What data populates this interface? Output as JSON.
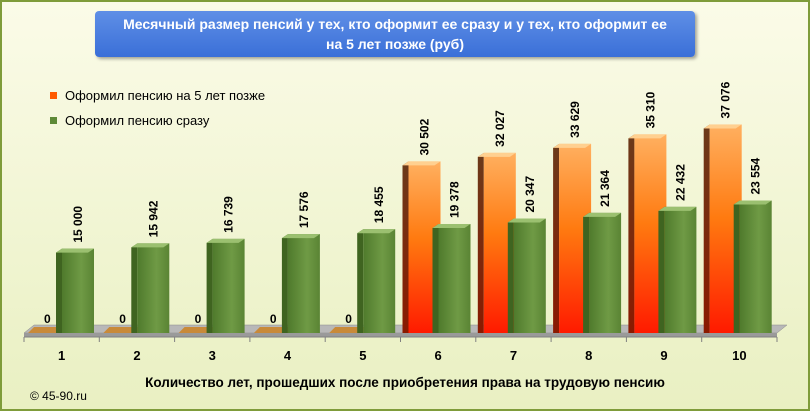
{
  "chart_data": {
    "type": "bar",
    "title_lines": [
      "Месячный  размер пенсий  у тех, кто оформит  ее сразу и у тех, кто  оформит ее",
      "на 5 лет позже (руб)"
    ],
    "xlabel": "Количество лет, прошедших после приобретения права  на трудовую  пенсию",
    "categories": [
      "1",
      "2",
      "3",
      "4",
      "5",
      "6",
      "7",
      "8",
      "9",
      "10"
    ],
    "value_labels": {
      "later": [
        "0",
        "0",
        "0",
        "0",
        "0",
        "30 502",
        "32 027",
        "33 629",
        "35 310",
        "37 076"
      ],
      "now": [
        "15 000",
        "15 942",
        "16 739",
        "17 576",
        "18 455",
        "19 378",
        "20 347",
        "21 364",
        "22 432",
        "23 554"
      ]
    },
    "series": [
      {
        "name": "Оформил пенсию на 5 лет позже",
        "color": "#ff5a00",
        "values": [
          0,
          0,
          0,
          0,
          0,
          30502,
          32027,
          33629,
          35310,
          37076
        ]
      },
      {
        "name": "Оформил пенсию сразу",
        "color": "#5e8a37",
        "values": [
          15000,
          15942,
          16739,
          17576,
          18455,
          19378,
          20347,
          21364,
          22432,
          23554
        ]
      }
    ],
    "ylim": [
      0,
      40000
    ],
    "grid": false,
    "legend_position": "top-left"
  },
  "copyright": "© 45-90.ru"
}
